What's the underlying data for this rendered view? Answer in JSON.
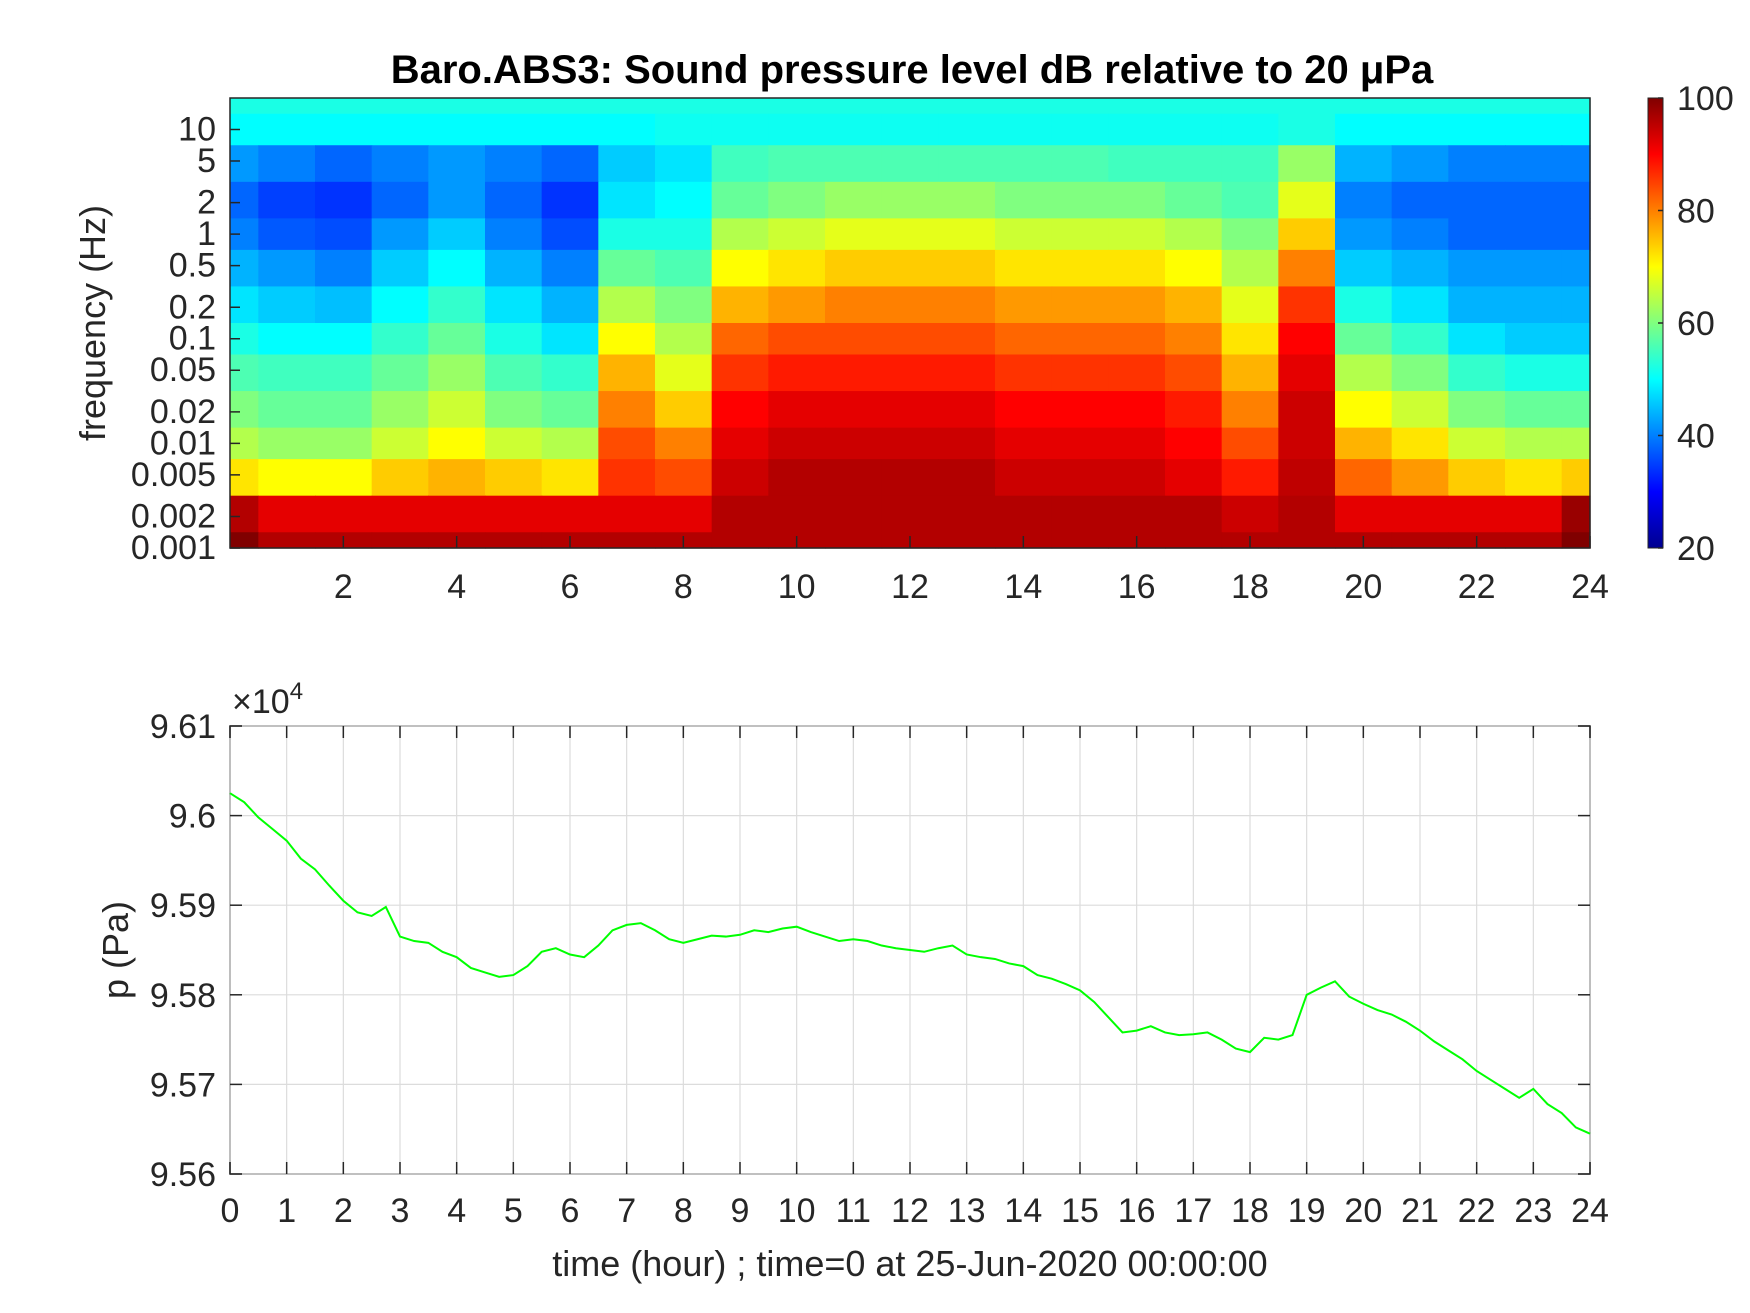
{
  "spectrogram": {
    "title": "Baro.ABS3: Sound pressure level dB relative to 20 μPa",
    "ylabel": "frequency (Hz)",
    "y_ticks": [
      "10",
      "5",
      "2",
      "1",
      "0.5",
      "0.2",
      "0.1",
      "0.05",
      "0.02",
      "0.01",
      "0.005",
      "0.002",
      "0.001"
    ],
    "x_ticks": [
      "2",
      "4",
      "6",
      "8",
      "10",
      "12",
      "14",
      "16",
      "18",
      "20",
      "22",
      "24"
    ],
    "colorbar_ticks": [
      "100",
      "80",
      "60",
      "40",
      "20"
    ]
  },
  "timeseries": {
    "ylabel": "p (Pa)",
    "xlabel": "time (hour) ; time=0 at 25-Jun-2020 00:00:00",
    "y_scale_label": "×10",
    "y_scale_exp": "4",
    "y_ticks": [
      "9.61",
      "9.6",
      "9.59",
      "9.58",
      "9.57",
      "9.56"
    ],
    "x_ticks": [
      "0",
      "1",
      "2",
      "3",
      "4",
      "5",
      "6",
      "7",
      "8",
      "9",
      "10",
      "11",
      "12",
      "13",
      "14",
      "15",
      "16",
      "17",
      "18",
      "19",
      "20",
      "21",
      "22",
      "23",
      "24"
    ]
  },
  "chart_data": [
    {
      "type": "heatmap",
      "title": "Baro.ABS3: Sound pressure level dB relative to 20 μPa",
      "xlabel": "",
      "ylabel": "frequency (Hz)",
      "xlim": [
        0,
        24
      ],
      "ylim": [
        0.001,
        20
      ],
      "y_scale": "log",
      "colormap": "jet",
      "clim": [
        20,
        100
      ],
      "colorbar_ticks": [
        20,
        40,
        60,
        80,
        100
      ],
      "frequencies": [
        20,
        10,
        5,
        2,
        1,
        0.5,
        0.2,
        0.1,
        0.05,
        0.02,
        0.01,
        0.005,
        0.002,
        0.001
      ],
      "time_hours": [
        0,
        1,
        2,
        3,
        4,
        5,
        6,
        7,
        8,
        9,
        10,
        11,
        12,
        13,
        14,
        15,
        16,
        17,
        18,
        19,
        20,
        21,
        22,
        23,
        24
      ],
      "level_dB": [
        [
          52,
          52,
          52,
          52,
          52,
          52,
          52,
          52,
          52,
          52,
          52,
          52,
          52,
          52,
          52,
          52,
          52,
          52,
          52,
          52,
          52,
          52,
          52,
          52,
          52
        ],
        [
          50,
          50,
          50,
          50,
          50,
          50,
          50,
          50,
          51,
          51,
          51,
          51,
          51,
          51,
          51,
          51,
          51,
          51,
          51,
          52,
          50,
          50,
          50,
          50,
          50
        ],
        [
          42,
          40,
          38,
          40,
          42,
          40,
          38,
          46,
          48,
          55,
          56,
          56,
          56,
          56,
          56,
          56,
          55,
          55,
          55,
          62,
          44,
          42,
          40,
          40,
          40
        ],
        [
          38,
          35,
          34,
          38,
          42,
          38,
          34,
          48,
          50,
          58,
          60,
          62,
          62,
          62,
          60,
          60,
          60,
          58,
          56,
          68,
          40,
          38,
          38,
          38,
          38
        ],
        [
          40,
          37,
          36,
          42,
          46,
          40,
          36,
          52,
          52,
          64,
          66,
          68,
          68,
          68,
          66,
          66,
          66,
          64,
          60,
          74,
          42,
          40,
          38,
          38,
          38
        ],
        [
          44,
          42,
          40,
          46,
          50,
          44,
          40,
          58,
          56,
          70,
          72,
          74,
          74,
          74,
          72,
          72,
          72,
          70,
          64,
          80,
          46,
          44,
          42,
          42,
          42
        ],
        [
          48,
          46,
          45,
          50,
          54,
          48,
          44,
          64,
          60,
          76,
          78,
          80,
          80,
          80,
          78,
          78,
          78,
          76,
          68,
          86,
          52,
          48,
          44,
          44,
          44
        ],
        [
          52,
          50,
          50,
          54,
          58,
          52,
          48,
          70,
          64,
          82,
          84,
          84,
          84,
          84,
          82,
          82,
          82,
          80,
          72,
          90,
          58,
          54,
          48,
          46,
          46
        ],
        [
          56,
          55,
          55,
          58,
          62,
          56,
          54,
          76,
          68,
          86,
          88,
          88,
          88,
          88,
          86,
          86,
          86,
          84,
          76,
          92,
          64,
          60,
          54,
          52,
          52
        ],
        [
          60,
          58,
          58,
          62,
          66,
          60,
          58,
          80,
          74,
          90,
          92,
          92,
          92,
          92,
          90,
          90,
          90,
          88,
          80,
          94,
          70,
          66,
          60,
          58,
          58
        ],
        [
          64,
          62,
          62,
          66,
          70,
          66,
          64,
          84,
          80,
          92,
          94,
          94,
          94,
          94,
          92,
          92,
          92,
          90,
          84,
          94,
          76,
          72,
          66,
          64,
          64
        ],
        [
          72,
          70,
          70,
          74,
          76,
          74,
          72,
          86,
          84,
          94,
          96,
          96,
          96,
          96,
          94,
          94,
          94,
          92,
          88,
          95,
          82,
          78,
          74,
          72,
          74
        ],
        [
          96,
          92,
          92,
          92,
          92,
          92,
          92,
          92,
          92,
          96,
          96,
          96,
          96,
          96,
          96,
          96,
          96,
          96,
          94,
          96,
          92,
          92,
          92,
          92,
          98
        ],
        [
          100,
          96,
          96,
          96,
          96,
          96,
          96,
          96,
          96,
          96,
          96,
          96,
          96,
          96,
          96,
          96,
          96,
          96,
          96,
          96,
          96,
          96,
          96,
          96,
          100
        ]
      ]
    },
    {
      "type": "line",
      "xlabel": "time (hour) ; time=0 at 25-Jun-2020 00:00:00",
      "ylabel": "p (Pa)",
      "xlim": [
        0,
        24
      ],
      "ylim": [
        95600,
        96100
      ],
      "y_multiplier": "×10^4",
      "grid": true,
      "series": [
        {
          "color": "#00ff00",
          "x": [
            0,
            0.25,
            0.5,
            0.75,
            1,
            1.25,
            1.5,
            1.75,
            2,
            2.25,
            2.5,
            2.75,
            3,
            3.25,
            3.5,
            3.75,
            4,
            4.25,
            4.5,
            4.75,
            5,
            5.25,
            5.5,
            5.75,
            6,
            6.25,
            6.5,
            6.75,
            7,
            7.25,
            7.5,
            7.75,
            8,
            8.25,
            8.5,
            8.75,
            9,
            9.25,
            9.5,
            9.75,
            10,
            10.25,
            10.5,
            10.75,
            11,
            11.25,
            11.5,
            11.75,
            12,
            12.25,
            12.5,
            12.75,
            13,
            13.25,
            13.5,
            13.75,
            14,
            14.25,
            14.5,
            14.75,
            15,
            15.25,
            15.5,
            15.75,
            16,
            16.25,
            16.5,
            16.75,
            17,
            17.25,
            17.5,
            17.75,
            18,
            18.25,
            18.5,
            18.75,
            19,
            19.25,
            19.5,
            19.75,
            20,
            20.25,
            20.5,
            20.75,
            21,
            21.25,
            21.5,
            21.75,
            22,
            22.25,
            22.5,
            22.75,
            23,
            23.25,
            23.5,
            23.75,
            24
          ],
          "y": [
            96025,
            96015,
            95998,
            95985,
            95972,
            95952,
            95940,
            95922,
            95905,
            95892,
            95888,
            95898,
            95865,
            95860,
            95858,
            95848,
            95842,
            95830,
            95825,
            95820,
            95822,
            95832,
            95848,
            95852,
            95845,
            95842,
            95855,
            95872,
            95878,
            95880,
            95872,
            95862,
            95858,
            95862,
            95866,
            95865,
            95867,
            95872,
            95870,
            95874,
            95876,
            95870,
            95865,
            95860,
            95862,
            95860,
            95855,
            95852,
            95850,
            95848,
            95852,
            95855,
            95845,
            95842,
            95840,
            95835,
            95832,
            95822,
            95818,
            95812,
            95805,
            95792,
            95775,
            95758,
            95760,
            95765,
            95758,
            95755,
            95756,
            95758,
            95750,
            95740,
            95736,
            95752,
            95750,
            95755,
            95800,
            95808,
            95815,
            95798,
            95790,
            95783,
            95778,
            95770,
            95760,
            95748,
            95738,
            95728,
            95715,
            95705,
            95695,
            95685,
            95695,
            95678,
            95668,
            95652,
            95645
          ]
        }
      ]
    }
  ]
}
